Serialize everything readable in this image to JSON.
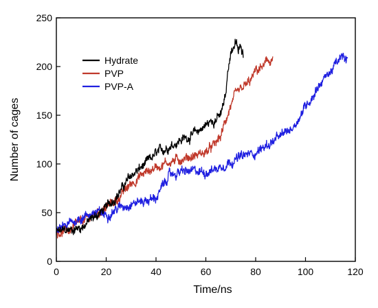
{
  "chart_data": {
    "type": "line",
    "title": "",
    "xlabel": "Time/ns",
    "ylabel": "Number of cages",
    "xlim": [
      0,
      120
    ],
    "ylim": [
      0,
      250
    ],
    "xticks": [
      0,
      20,
      40,
      60,
      80,
      100,
      120
    ],
    "yticks": [
      0,
      50,
      100,
      150,
      200,
      250
    ],
    "grid": false,
    "legend_position": "top-left",
    "series": [
      {
        "name": "Hydrate",
        "color": "#000000",
        "x": [
          0,
          5,
          10,
          15,
          20,
          25,
          30,
          35,
          40,
          45,
          50,
          55,
          60,
          63,
          66,
          68,
          69,
          70,
          71,
          72,
          73,
          74,
          75
        ],
        "y": [
          30,
          32,
          35,
          45,
          55,
          70,
          88,
          98,
          110,
          118,
          125,
          130,
          140,
          145,
          150,
          170,
          200,
          215,
          220,
          225,
          215,
          220,
          215
        ]
      },
      {
        "name": "PVP",
        "color": "#c0392b",
        "x": [
          0,
          5,
          10,
          15,
          20,
          25,
          30,
          35,
          40,
          45,
          50,
          55,
          60,
          63,
          66,
          68,
          70,
          72,
          75,
          78,
          80,
          83,
          85,
          87
        ],
        "y": [
          30,
          32,
          40,
          48,
          55,
          65,
          80,
          90,
          97,
          102,
          105,
          108,
          112,
          118,
          128,
          145,
          160,
          170,
          178,
          185,
          195,
          200,
          205,
          208
        ]
      },
      {
        "name": "PVP-A",
        "color": "#1f1fe0",
        "x": [
          0,
          5,
          10,
          15,
          20,
          25,
          30,
          35,
          40,
          43,
          45,
          50,
          55,
          60,
          65,
          70,
          75,
          80,
          85,
          90,
          95,
          98,
          100,
          103,
          105,
          110,
          113,
          115,
          117
        ],
        "y": [
          30,
          38,
          45,
          50,
          48,
          55,
          60,
          62,
          65,
          78,
          88,
          92,
          92,
          92,
          96,
          103,
          108,
          112,
          120,
          128,
          138,
          150,
          160,
          170,
          180,
          195,
          205,
          210,
          205
        ]
      }
    ]
  }
}
